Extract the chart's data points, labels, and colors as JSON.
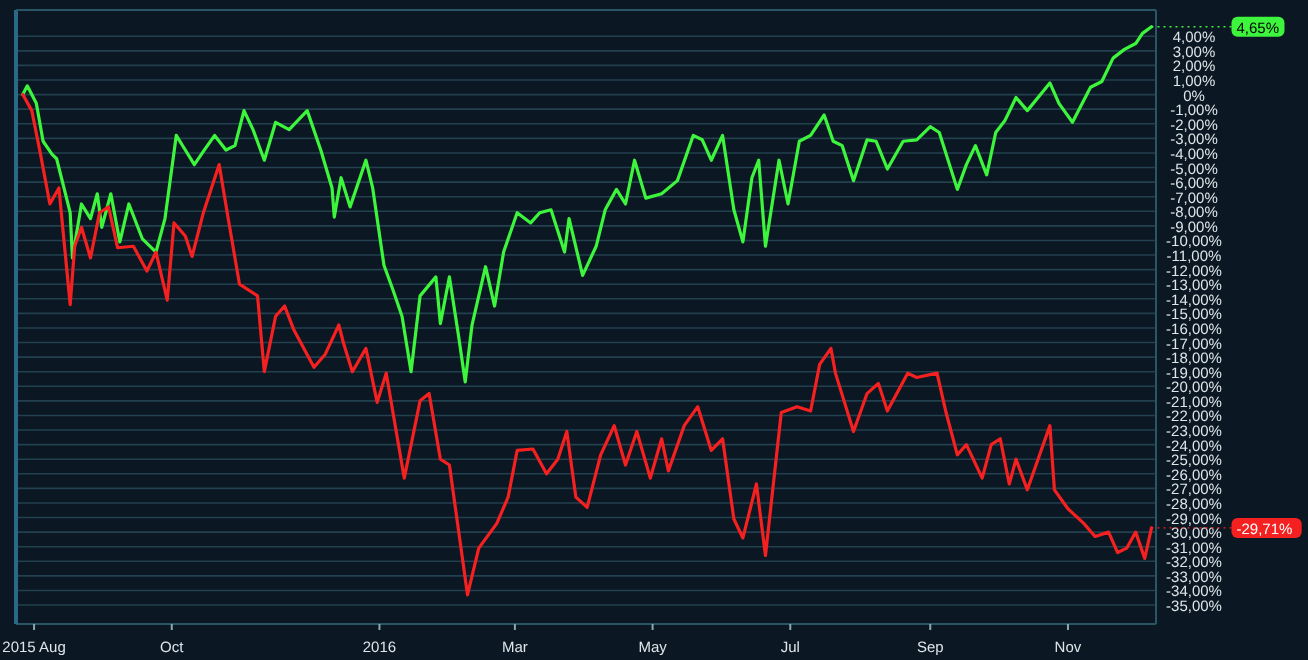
{
  "chart_data": {
    "type": "line",
    "xlim": [
      "2015-07-24",
      "2016-12-10"
    ],
    "ylim": [
      -36.3,
      5.8
    ],
    "xticks": [
      {
        "value": "2015-08-01",
        "label": "2015 Aug"
      },
      {
        "value": "2015-10-01",
        "label": "Oct"
      },
      {
        "value": "2016-01-01",
        "label": "2016"
      },
      {
        "value": "2016-03-01",
        "label": "Mar"
      },
      {
        "value": "2016-05-01",
        "label": "May"
      },
      {
        "value": "2016-07-01",
        "label": "Jul"
      },
      {
        "value": "2016-09-01",
        "label": "Sep"
      },
      {
        "value": "2016-11-01",
        "label": "Nov"
      }
    ],
    "yticks": [
      {
        "value": 4,
        "label": "4,00%"
      },
      {
        "value": 3,
        "label": "3,00%"
      },
      {
        "value": 2,
        "label": "2,00%"
      },
      {
        "value": 1,
        "label": "1,00%"
      },
      {
        "value": 0,
        "label": "0%"
      },
      {
        "value": -1,
        "label": "-1,00%"
      },
      {
        "value": -2,
        "label": "-2,00%"
      },
      {
        "value": -3,
        "label": "-3,00%"
      },
      {
        "value": -4,
        "label": "-4,00%"
      },
      {
        "value": -5,
        "label": "-5,00%"
      },
      {
        "value": -6,
        "label": "-6,00%"
      },
      {
        "value": -7,
        "label": "-7,00%"
      },
      {
        "value": -8,
        "label": "-8,00%"
      },
      {
        "value": -9,
        "label": "-9,00%"
      },
      {
        "value": -10,
        "label": "-10,00%"
      },
      {
        "value": -11,
        "label": "-11,00%"
      },
      {
        "value": -12,
        "label": "-12,00%"
      },
      {
        "value": -13,
        "label": "-13,00%"
      },
      {
        "value": -14,
        "label": "-14,00%"
      },
      {
        "value": -15,
        "label": "-15,00%"
      },
      {
        "value": -16,
        "label": "-16,00%"
      },
      {
        "value": -17,
        "label": "-17,00%"
      },
      {
        "value": -18,
        "label": "-18,00%"
      },
      {
        "value": -19,
        "label": "-19,00%"
      },
      {
        "value": -20,
        "label": "-20,00%"
      },
      {
        "value": -21,
        "label": "-21,00%"
      },
      {
        "value": -22,
        "label": "-22,00%"
      },
      {
        "value": -23,
        "label": "-23,00%"
      },
      {
        "value": -24,
        "label": "-24,00%"
      },
      {
        "value": -25,
        "label": "-25,00%"
      },
      {
        "value": -26,
        "label": "-26,00%"
      },
      {
        "value": -27,
        "label": "-27,00%"
      },
      {
        "value": -28,
        "label": "-28,00%"
      },
      {
        "value": -29,
        "label": "-29,00%"
      },
      {
        "value": -30,
        "label": "-30,00%"
      },
      {
        "value": -31,
        "label": "-31,00%"
      },
      {
        "value": -32,
        "label": "-32,00%"
      },
      {
        "value": -33,
        "label": "-33,00%"
      },
      {
        "value": -34,
        "label": "-34,00%"
      },
      {
        "value": -35,
        "label": "-35,00%"
      }
    ],
    "grid": "y",
    "marker": "none",
    "line_style": "solid",
    "series": [
      {
        "color": "#3cf53c",
        "x": [
          "2015-07-27",
          "2015-07-29",
          "2015-08-02",
          "2015-08-05",
          "2015-08-09",
          "2015-08-11",
          "2015-08-17",
          "2015-08-18",
          "2015-08-22",
          "2015-08-26",
          "2015-08-29",
          "2015-08-31",
          "2015-09-04",
          "2015-09-08",
          "2015-09-12",
          "2015-09-18",
          "2015-09-24",
          "2015-09-28",
          "2015-10-03",
          "2015-10-07",
          "2015-10-11",
          "2015-10-15",
          "2015-10-20",
          "2015-10-25",
          "2015-10-29",
          "2015-11-02",
          "2015-11-06",
          "2015-11-11",
          "2015-11-16",
          "2015-11-22",
          "2015-11-30",
          "2015-12-06",
          "2015-12-11",
          "2015-12-12",
          "2015-12-15",
          "2015-12-19",
          "2015-12-26",
          "2015-12-29",
          "2016-01-03",
          "2016-01-07",
          "2016-01-11",
          "2016-01-15",
          "2016-01-19",
          "2016-01-26",
          "2016-01-28",
          "2016-02-01",
          "2016-02-05",
          "2016-02-08",
          "2016-02-11",
          "2016-02-17",
          "2016-02-21",
          "2016-02-25",
          "2016-03-02",
          "2016-03-08",
          "2016-03-12",
          "2016-03-17",
          "2016-03-23",
          "2016-03-25",
          "2016-03-31",
          "2016-04-06",
          "2016-04-10",
          "2016-04-15",
          "2016-04-19",
          "2016-04-23",
          "2016-04-28",
          "2016-05-05",
          "2016-05-12",
          "2016-05-19",
          "2016-05-23",
          "2016-05-27",
          "2016-06-01",
          "2016-06-06",
          "2016-06-10",
          "2016-06-14",
          "2016-06-17",
          "2016-06-20",
          "2016-06-26",
          "2016-06-30",
          "2016-07-05",
          "2016-07-10",
          "2016-07-16",
          "2016-07-20",
          "2016-07-24",
          "2016-07-29",
          "2016-08-04",
          "2016-08-08",
          "2016-08-13",
          "2016-08-20",
          "2016-08-26",
          "2016-09-01",
          "2016-09-05",
          "2016-09-13",
          "2016-09-17",
          "2016-09-21",
          "2016-09-26",
          "2016-09-30",
          "2016-10-04",
          "2016-10-09",
          "2016-10-14",
          "2016-10-24",
          "2016-10-28",
          "2016-11-03",
          "2016-11-11",
          "2016-11-16",
          "2016-11-21",
          "2016-11-26",
          "2016-12-01",
          "2016-12-04",
          "2016-12-08"
        ],
        "values": [
          0,
          0.6,
          -0.6,
          -3.2,
          -4.1,
          -4.4,
          -8.1,
          -11.2,
          -7.5,
          -8.5,
          -6.8,
          -9.1,
          -6.8,
          -10.1,
          -7.5,
          -9.9,
          -10.8,
          -8.5,
          -2.8,
          -3.8,
          -4.8,
          -3.9,
          -2.8,
          -3.8,
          -3.5,
          -1.1,
          -2.4,
          -4.5,
          -1.9,
          -2.4,
          -1.1,
          -3.8,
          -6.4,
          -8.4,
          -5.7,
          -7.7,
          -4.5,
          -6.4,
          -11.7,
          -13.4,
          -15.2,
          -19.0,
          -13.8,
          -12.5,
          -15.7,
          -12.5,
          -16.5,
          -19.7,
          -15.8,
          -11.8,
          -14.5,
          -10.8,
          -8.1,
          -8.8,
          -8.1,
          -7.9,
          -10.8,
          -8.5,
          -12.4,
          -10.4,
          -7.9,
          -6.5,
          -7.5,
          -4.5,
          -7.1,
          -6.8,
          -5.9,
          -2.8,
          -3.1,
          -4.5,
          -2.8,
          -7.9,
          -10.1,
          -5.7,
          -4.5,
          -10.4,
          -4.5,
          -7.5,
          -3.2,
          -2.8,
          -1.4,
          -3.2,
          -3.5,
          -5.9,
          -3.1,
          -3.2,
          -5.1,
          -3.2,
          -3.1,
          -2.2,
          -2.6,
          -6.5,
          -4.8,
          -3.5,
          -5.5,
          -2.6,
          -1.8,
          -0.2,
          -1.1,
          0.8,
          -0.6,
          -1.9,
          0.5,
          0.9,
          2.5,
          3.1,
          3.5,
          4.2,
          4.65
        ]
      },
      {
        "color": "#f52020",
        "x": [
          "2015-07-27",
          "2015-07-31",
          "2015-08-04",
          "2015-08-08",
          "2015-08-12",
          "2015-08-17",
          "2015-08-19",
          "2015-08-22",
          "2015-08-26",
          "2015-08-30",
          "2015-09-03",
          "2015-09-07",
          "2015-09-14",
          "2015-09-20",
          "2015-09-24",
          "2015-09-29",
          "2015-10-02",
          "2015-10-07",
          "2015-10-10",
          "2015-10-15",
          "2015-10-22",
          "2015-10-26",
          "2015-10-31",
          "2015-11-08",
          "2015-11-11",
          "2015-11-16",
          "2015-11-20",
          "2015-11-24",
          "2015-12-03",
          "2015-12-08",
          "2015-12-14",
          "2015-12-16",
          "2015-12-20",
          "2015-12-26",
          "2015-12-31",
          "2016-01-04",
          "2016-01-12",
          "2016-01-19",
          "2016-01-23",
          "2016-01-28",
          "2016-02-01",
          "2016-02-09",
          "2016-02-14",
          "2016-02-22",
          "2016-02-27",
          "2016-03-02",
          "2016-03-09",
          "2016-03-15",
          "2016-03-20",
          "2016-03-24",
          "2016-03-28",
          "2016-04-02",
          "2016-04-08",
          "2016-04-14",
          "2016-04-19",
          "2016-04-24",
          "2016-04-30",
          "2016-05-05",
          "2016-05-08",
          "2016-05-15",
          "2016-05-21",
          "2016-05-27",
          "2016-06-01",
          "2016-06-06",
          "2016-06-10",
          "2016-06-16",
          "2016-06-20",
          "2016-06-27",
          "2016-07-04",
          "2016-07-10",
          "2016-07-14",
          "2016-07-19",
          "2016-07-21",
          "2016-07-29",
          "2016-08-04",
          "2016-08-09",
          "2016-08-13",
          "2016-08-22",
          "2016-08-26",
          "2016-09-04",
          "2016-09-08",
          "2016-09-13",
          "2016-09-17",
          "2016-09-24",
          "2016-09-28",
          "2016-10-02",
          "2016-10-06",
          "2016-10-09",
          "2016-10-14",
          "2016-10-24",
          "2016-10-26",
          "2016-11-01",
          "2016-11-08",
          "2016-11-13",
          "2016-11-19",
          "2016-11-23",
          "2016-11-27",
          "2016-12-01",
          "2016-12-05",
          "2016-12-08"
        ],
        "values": [
          0,
          -1.1,
          -4.2,
          -7.5,
          -6.4,
          -14.4,
          -10.4,
          -9.1,
          -11.2,
          -8.1,
          -7.7,
          -10.5,
          -10.4,
          -12.1,
          -10.8,
          -14.1,
          -8.8,
          -9.7,
          -11.1,
          -8.1,
          -4.8,
          -8.5,
          -13.0,
          -13.8,
          -19.0,
          -15.2,
          -14.5,
          -16.1,
          -18.7,
          -17.8,
          -15.8,
          -17.0,
          -19.0,
          -17.4,
          -21.1,
          -19.1,
          -26.3,
          -21.0,
          -20.5,
          -25.0,
          -25.4,
          -34.3,
          -31.1,
          -29.4,
          -27.6,
          -24.4,
          -24.3,
          -26.0,
          -25.0,
          -23.1,
          -27.6,
          -28.3,
          -24.7,
          -22.7,
          -25.4,
          -23.1,
          -26.3,
          -23.6,
          -25.8,
          -22.7,
          -21.4,
          -24.4,
          -23.6,
          -29.1,
          -30.4,
          -26.7,
          -31.6,
          -21.8,
          -21.4,
          -21.7,
          -18.5,
          -17.4,
          -19.1,
          -23.1,
          -20.5,
          -19.8,
          -21.7,
          -19.1,
          -19.4,
          -19.1,
          -21.8,
          -24.7,
          -24.0,
          -26.3,
          -24.0,
          -23.6,
          -26.7,
          -25.0,
          -27.1,
          -22.7,
          -27.1,
          -28.4,
          -29.4,
          -30.3,
          -30.0,
          -31.4,
          -31.1,
          -30.0,
          -31.8,
          -29.71
        ]
      }
    ],
    "annotations": [
      {
        "text": "4,65%",
        "x": "2016-12-08",
        "y": 4.65
      },
      {
        "text": "-29,71%",
        "x": "2016-12-08",
        "y": -29.71
      }
    ]
  }
}
